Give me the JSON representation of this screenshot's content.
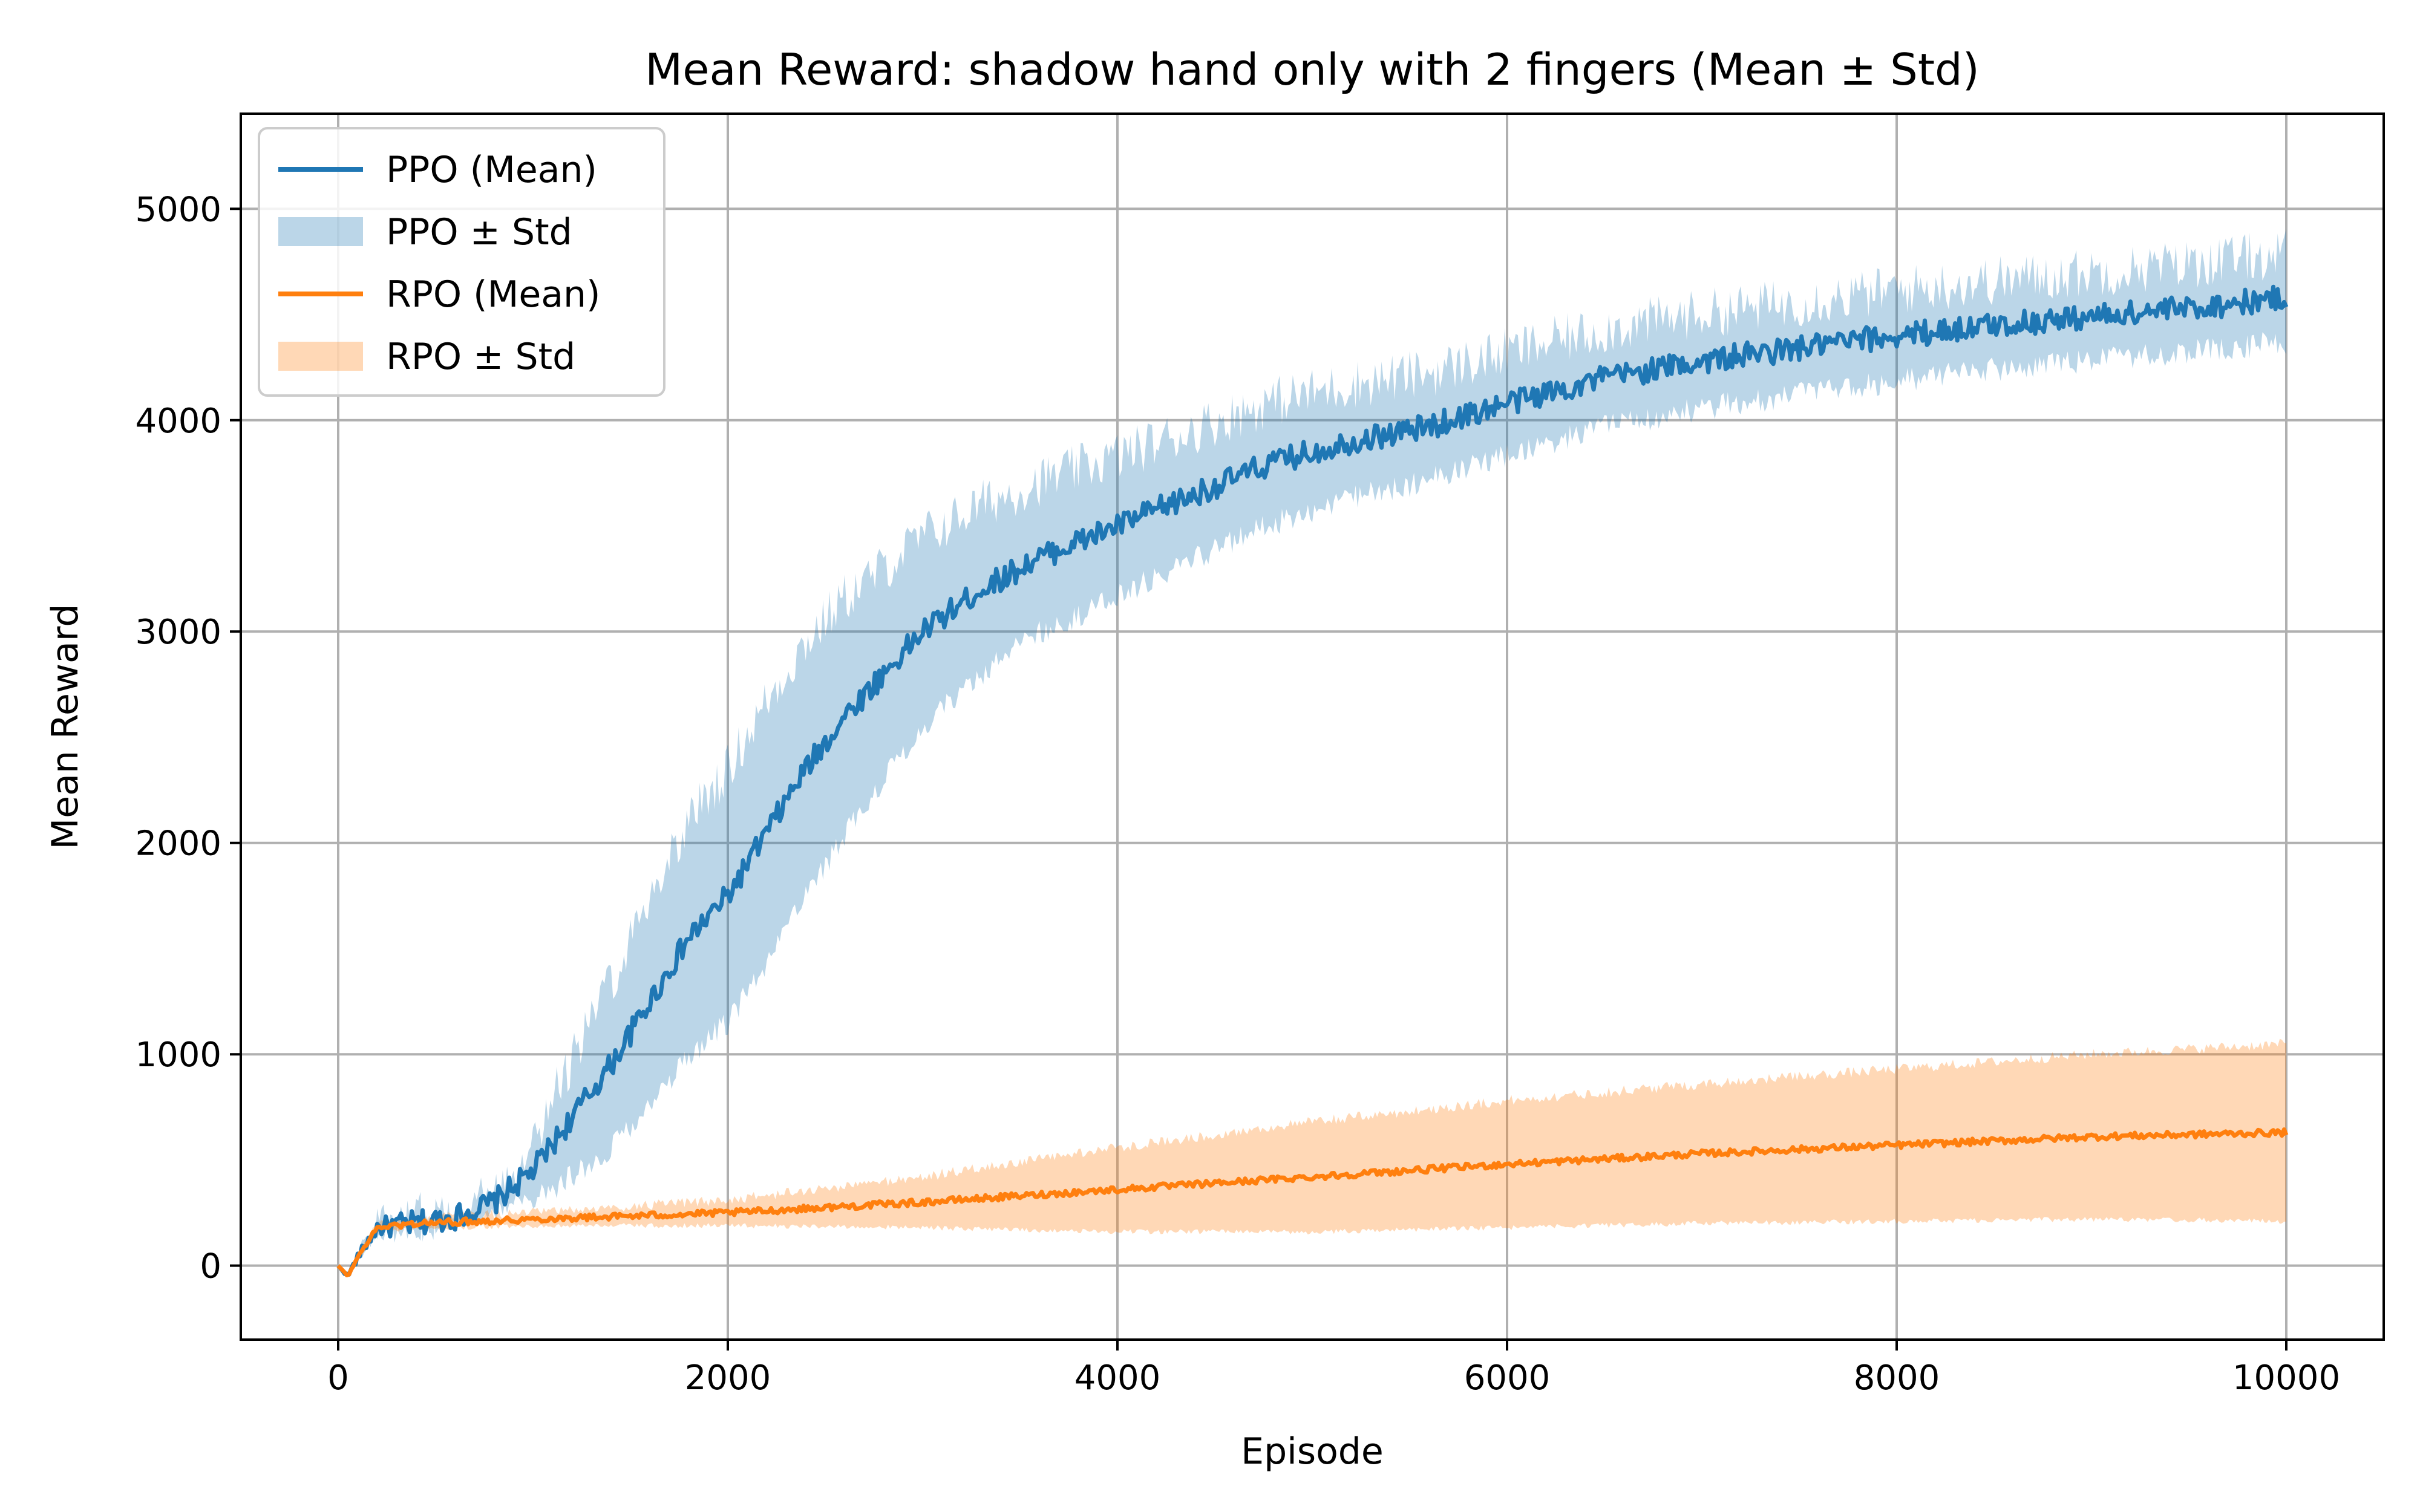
{
  "chart_data": {
    "type": "line",
    "title": "Mean Reward: shadow hand only with 2 fingers (Mean ± Std)",
    "xlabel": "Episode",
    "ylabel": "Mean Reward",
    "xlim": [
      -500,
      10500
    ],
    "ylim": [
      -350,
      5450
    ],
    "xticks": [
      0,
      2000,
      4000,
      6000,
      8000,
      10000
    ],
    "yticks": [
      0,
      1000,
      2000,
      3000,
      4000,
      5000
    ],
    "grid": true,
    "legend_position": "upper-left",
    "legend": [
      "PPO (Mean)",
      "PPO ± Std",
      "RPO (Mean)",
      "RPO ± Std"
    ],
    "colors": {
      "ppo": "#1f77b4",
      "ppo_band": "#1f77b4",
      "rpo": "#ff7f0e",
      "rpo_band": "#ff7f0e"
    },
    "series": [
      {
        "name": "PPO (Mean)",
        "std_label": "PPO ± Std",
        "x": [
          0,
          50,
          100,
          200,
          400,
          600,
          800,
          1000,
          1200,
          1400,
          1600,
          1800,
          2000,
          2200,
          2400,
          2600,
          2800,
          3000,
          3300,
          3600,
          4000,
          4400,
          4800,
          5200,
          5600,
          6000,
          6500,
          7000,
          7500,
          8000,
          8500,
          9000,
          9500,
          10000
        ],
        "mean": [
          0,
          -50,
          40,
          180,
          200,
          230,
          300,
          450,
          700,
          950,
          1250,
          1550,
          1750,
          2050,
          2350,
          2600,
          2800,
          3000,
          3200,
          3350,
          3500,
          3650,
          3800,
          3900,
          3970,
          4080,
          4200,
          4280,
          4340,
          4400,
          4450,
          4490,
          4530,
          4580
        ],
        "std": [
          0,
          10,
          15,
          20,
          25,
          30,
          50,
          150,
          280,
          400,
          500,
          560,
          600,
          620,
          600,
          560,
          500,
          450,
          400,
          360,
          330,
          310,
          290,
          270,
          255,
          240,
          230,
          225,
          220,
          215,
          210,
          210,
          210,
          210
        ]
      },
      {
        "name": "RPO (Mean)",
        "std_label": "RPO ± Std",
        "x": [
          0,
          50,
          100,
          200,
          400,
          1000,
          2000,
          3000,
          4000,
          5000,
          6000,
          7000,
          8000,
          9000,
          10000
        ],
        "mean": [
          0,
          -50,
          40,
          180,
          200,
          220,
          250,
          300,
          360,
          420,
          480,
          530,
          570,
          610,
          630
        ],
        "std": [
          0,
          10,
          15,
          20,
          25,
          30,
          60,
          120,
          200,
          260,
          300,
          330,
          360,
          390,
          420
        ]
      }
    ]
  }
}
